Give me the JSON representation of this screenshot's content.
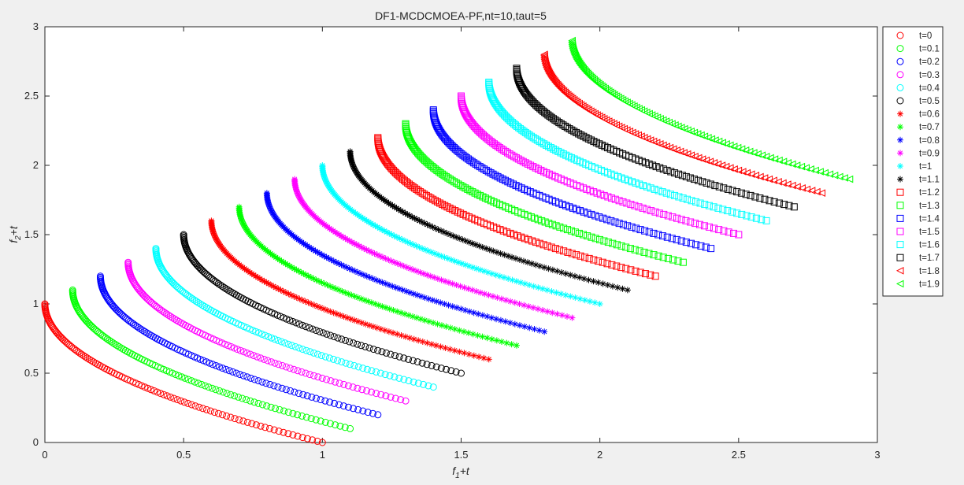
{
  "chart_data": {
    "type": "scatter",
    "title": "DF1-MCDCMOEA-PF,nt=10,taut=5",
    "xlabel": {
      "base": "f",
      "sub": "1",
      "suffix": "+t"
    },
    "ylabel": {
      "base": "f",
      "sub": "2",
      "suffix": "+t"
    },
    "xlim": [
      0,
      3
    ],
    "ylim": [
      0,
      3
    ],
    "xticks": [
      "0",
      "0.5",
      "1",
      "1.5",
      "2",
      "2.5",
      "3"
    ],
    "yticks": [
      "0",
      "0.5",
      "1",
      "1.5",
      "2",
      "2.5",
      "3"
    ],
    "grid": false,
    "legend_position": "outside-right-top",
    "curve": "y = t + 1 - sqrt(x - t), x from t to t+1",
    "series": [
      {
        "name": "t=0",
        "t": 0.0,
        "marker": "o",
        "color": "#ff0000"
      },
      {
        "name": "t=0.1",
        "t": 0.1,
        "marker": "o",
        "color": "#00ff00"
      },
      {
        "name": "t=0.2",
        "t": 0.2,
        "marker": "o",
        "color": "#0000ff"
      },
      {
        "name": "t=0.3",
        "t": 0.3,
        "marker": "o",
        "color": "#ff00ff"
      },
      {
        "name": "t=0.4",
        "t": 0.4,
        "marker": "o",
        "color": "#00ffff"
      },
      {
        "name": "t=0.5",
        "t": 0.5,
        "marker": "o",
        "color": "#000000"
      },
      {
        "name": "t=0.6",
        "t": 0.6,
        "marker": "*",
        "color": "#ff0000"
      },
      {
        "name": "t=0.7",
        "t": 0.7,
        "marker": "*",
        "color": "#00ff00"
      },
      {
        "name": "t=0.8",
        "t": 0.8,
        "marker": "*",
        "color": "#0000ff"
      },
      {
        "name": "t=0.9",
        "t": 0.9,
        "marker": "*",
        "color": "#ff00ff"
      },
      {
        "name": "t=1",
        "t": 1.0,
        "marker": "*",
        "color": "#00ffff"
      },
      {
        "name": "t=1.1",
        "t": 1.1,
        "marker": "*",
        "color": "#000000"
      },
      {
        "name": "t=1.2",
        "t": 1.2,
        "marker": "s",
        "color": "#ff0000"
      },
      {
        "name": "t=1.3",
        "t": 1.3,
        "marker": "s",
        "color": "#00ff00"
      },
      {
        "name": "t=1.4",
        "t": 1.4,
        "marker": "s",
        "color": "#0000ff"
      },
      {
        "name": "t=1.5",
        "t": 1.5,
        "marker": "s",
        "color": "#ff00ff"
      },
      {
        "name": "t=1.6",
        "t": 1.6,
        "marker": "s",
        "color": "#00ffff"
      },
      {
        "name": "t=1.7",
        "t": 1.7,
        "marker": "s",
        "color": "#000000"
      },
      {
        "name": "t=1.8",
        "t": 1.8,
        "marker": "<",
        "color": "#ff0000"
      },
      {
        "name": "t=1.9",
        "t": 1.9,
        "marker": "<",
        "color": "#00ff00"
      }
    ]
  }
}
